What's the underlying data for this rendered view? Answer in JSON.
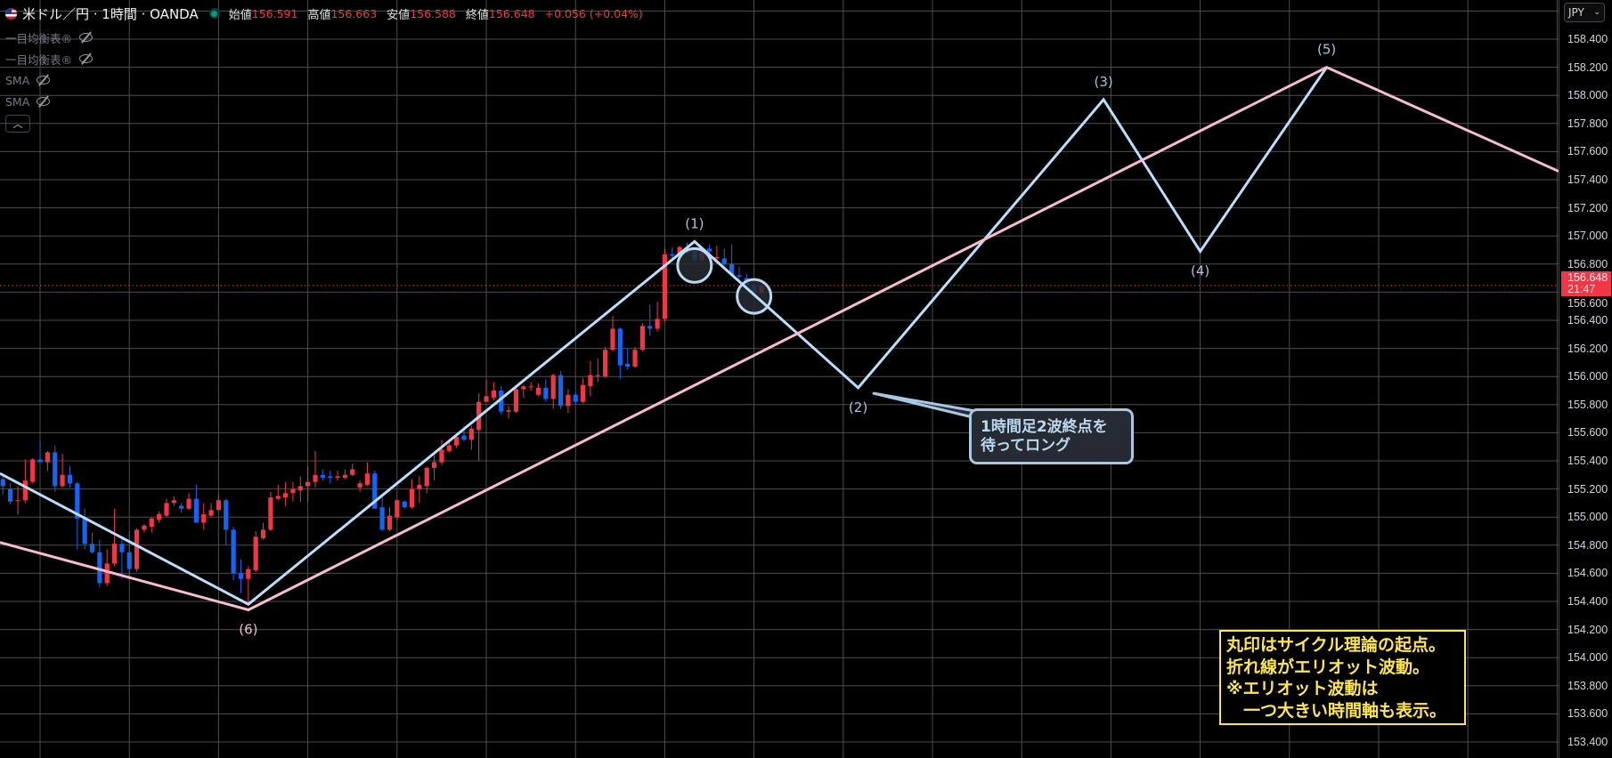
{
  "header": {
    "symbol_title": "米ドル／円 · 1時間 · OANDA",
    "open_label": "始値",
    "open_value": "156.591",
    "high_label": "高値",
    "high_value": "156.663",
    "low_label": "安値",
    "low_value": "156.588",
    "close_label": "終値",
    "close_value": "156.648",
    "change": "+0.056 (+0.04%)"
  },
  "indicators": [
    {
      "label": "一目均衡表®",
      "icon": "eye-off-icon"
    },
    {
      "label": "一目均衡表®",
      "icon": "eye-off-icon"
    },
    {
      "label": "SMA",
      "icon": "eye-off-icon"
    },
    {
      "label": "SMA",
      "icon": "eye-off-icon"
    }
  ],
  "collapse_icon": "chevron-up-icon",
  "price_axis": {
    "currency": "JPY",
    "ticks": [
      "158.400",
      "158.200",
      "158.000",
      "157.800",
      "157.600",
      "157.400",
      "157.200",
      "157.000",
      "156.800",
      "156.600",
      "156.400",
      "156.200",
      "156.000",
      "155.800",
      "155.600",
      "155.400",
      "155.200",
      "155.000",
      "154.800",
      "154.600",
      "154.400",
      "154.200",
      "154.000",
      "153.800",
      "153.600",
      "153.400"
    ],
    "current_price": "156.648",
    "countdown": "21:47"
  },
  "colors": {
    "up": "#f23645",
    "down": "#1465f5",
    "wave_small": "#bbdefb",
    "wave_large": "#f8bbd0",
    "note": "#fde64b",
    "grid": "#4d4d4d"
  },
  "chart_data": {
    "type": "candlestick",
    "ylim": [
      153.3,
      158.65
    ],
    "grid": true,
    "candles_ohlc": [
      [
        155.27,
        155.31,
        155.16,
        155.22
      ],
      [
        155.2,
        155.24,
        155.09,
        155.11
      ],
      [
        155.12,
        155.22,
        155.02,
        155.12
      ],
      [
        155.12,
        155.41,
        155.1,
        155.26
      ],
      [
        155.25,
        155.42,
        155.24,
        155.41
      ],
      [
        155.41,
        155.54,
        155.38,
        155.39
      ],
      [
        155.39,
        155.47,
        155.33,
        155.46
      ],
      [
        155.46,
        155.51,
        155.18,
        155.22
      ],
      [
        155.22,
        155.45,
        155.21,
        155.3
      ],
      [
        155.3,
        155.36,
        155.21,
        155.24
      ],
      [
        155.24,
        155.25,
        154.77,
        154.99
      ],
      [
        154.99,
        155.06,
        154.77,
        154.81
      ],
      [
        154.81,
        154.89,
        154.74,
        154.75
      ],
      [
        154.75,
        154.84,
        154.5,
        154.53
      ],
      [
        154.53,
        154.77,
        154.51,
        154.67
      ],
      [
        154.67,
        155.06,
        154.65,
        154.81
      ],
      [
        154.81,
        154.86,
        154.56,
        154.75
      ],
      [
        154.75,
        154.9,
        154.56,
        154.63
      ],
      [
        154.63,
        154.92,
        154.61,
        154.91
      ],
      [
        154.91,
        154.95,
        154.89,
        154.94
      ],
      [
        154.93,
        155.0,
        154.89,
        154.99
      ],
      [
        154.98,
        155.04,
        154.96,
        155.02
      ],
      [
        155.01,
        155.13,
        155.0,
        155.1
      ],
      [
        155.1,
        155.15,
        155.08,
        155.12
      ],
      [
        155.08,
        155.1,
        155.03,
        155.06
      ],
      [
        155.06,
        155.17,
        155.05,
        155.13
      ],
      [
        155.13,
        155.23,
        154.96,
        154.96
      ],
      [
        154.96,
        155.1,
        154.91,
        155.02
      ],
      [
        155.01,
        155.1,
        155.0,
        155.05
      ],
      [
        155.05,
        155.16,
        155.05,
        155.12
      ],
      [
        155.12,
        155.13,
        154.8,
        154.91
      ],
      [
        154.91,
        154.93,
        154.55,
        154.6
      ],
      [
        154.6,
        154.7,
        154.46,
        154.56
      ],
      [
        154.56,
        154.65,
        154.37,
        154.63
      ],
      [
        154.62,
        154.9,
        154.61,
        154.86
      ],
      [
        154.85,
        154.96,
        154.84,
        154.91
      ],
      [
        154.91,
        155.18,
        154.9,
        155.14
      ],
      [
        155.13,
        155.23,
        155.12,
        155.15
      ],
      [
        155.14,
        155.25,
        155.08,
        155.17
      ],
      [
        155.17,
        155.25,
        155.11,
        155.2
      ],
      [
        155.19,
        155.29,
        155.11,
        155.22
      ],
      [
        155.22,
        155.36,
        155.11,
        155.25
      ],
      [
        155.25,
        155.47,
        155.21,
        155.3
      ],
      [
        155.3,
        155.34,
        155.26,
        155.28
      ],
      [
        155.29,
        155.33,
        155.24,
        155.28
      ],
      [
        155.28,
        155.33,
        155.26,
        155.29
      ],
      [
        155.28,
        155.34,
        155.27,
        155.3
      ],
      [
        155.3,
        155.38,
        155.29,
        155.34
      ],
      [
        155.21,
        155.26,
        155.18,
        155.24
      ],
      [
        155.23,
        155.39,
        155.22,
        155.31
      ],
      [
        155.31,
        155.33,
        155.06,
        155.06
      ],
      [
        155.07,
        155.15,
        154.9,
        154.91
      ],
      [
        154.91,
        155.07,
        154.9,
        155.01
      ],
      [
        155.0,
        155.13,
        154.98,
        155.12
      ],
      [
        155.11,
        155.12,
        155.06,
        155.07
      ],
      [
        155.07,
        155.27,
        155.06,
        155.2
      ],
      [
        155.2,
        155.29,
        155.1,
        155.23
      ],
      [
        155.22,
        155.36,
        155.17,
        155.35
      ],
      [
        155.35,
        155.44,
        155.26,
        155.39
      ],
      [
        155.39,
        155.55,
        155.37,
        155.48
      ],
      [
        155.47,
        155.53,
        155.46,
        155.51
      ],
      [
        155.51,
        155.59,
        155.49,
        155.57
      ],
      [
        155.58,
        155.65,
        155.54,
        155.55
      ],
      [
        155.55,
        155.65,
        155.48,
        155.63
      ],
      [
        155.62,
        155.88,
        155.4,
        155.82
      ],
      [
        155.82,
        155.98,
        155.82,
        155.86
      ],
      [
        155.85,
        155.96,
        155.83,
        155.9
      ],
      [
        155.9,
        155.93,
        155.73,
        155.75
      ],
      [
        155.75,
        155.79,
        155.7,
        155.76
      ],
      [
        155.75,
        155.93,
        155.74,
        155.91
      ],
      [
        155.91,
        155.94,
        155.85,
        155.93
      ],
      [
        155.93,
        155.96,
        155.9,
        155.93
      ],
      [
        155.87,
        155.95,
        155.86,
        155.92
      ],
      [
        155.92,
        155.98,
        155.82,
        155.84
      ],
      [
        155.84,
        156.02,
        155.77,
        156.01
      ],
      [
        156.01,
        156.04,
        155.77,
        155.79
      ],
      [
        155.79,
        155.91,
        155.74,
        155.87
      ],
      [
        155.87,
        155.89,
        155.8,
        155.82
      ],
      [
        155.82,
        155.99,
        155.81,
        155.94
      ],
      [
        155.93,
        156.11,
        155.86,
        156.01
      ],
      [
        156.01,
        156.13,
        155.96,
        156.01
      ],
      [
        156.0,
        156.21,
        155.99,
        156.19
      ],
      [
        156.19,
        156.43,
        156.18,
        156.34
      ],
      [
        156.34,
        156.35,
        155.98,
        156.08
      ],
      [
        156.09,
        156.2,
        156.05,
        156.07
      ],
      [
        156.07,
        156.21,
        156.06,
        156.19
      ],
      [
        156.19,
        156.38,
        156.18,
        156.36
      ],
      [
        156.36,
        156.51,
        156.29,
        156.34
      ],
      [
        156.34,
        156.53,
        156.32,
        156.41
      ],
      [
        156.41,
        156.91,
        156.39,
        156.87
      ],
      [
        156.87,
        156.92,
        156.84,
        156.86
      ],
      [
        156.86,
        156.93,
        156.85,
        156.92
      ],
      [
        156.88,
        156.95,
        156.87,
        156.9
      ],
      [
        156.91,
        156.92,
        156.81,
        156.83
      ],
      [
        156.83,
        156.9,
        156.82,
        156.89
      ],
      [
        156.91,
        156.94,
        156.87,
        156.89
      ],
      [
        156.84,
        156.93,
        156.83,
        156.85
      ],
      [
        156.84,
        156.91,
        156.79,
        156.8
      ],
      [
        156.8,
        156.94,
        156.72,
        156.72
      ],
      [
        156.72,
        156.78,
        156.69,
        156.71
      ],
      [
        156.7,
        156.73,
        156.64,
        156.65
      ],
      [
        156.65,
        156.67,
        156.58,
        156.59
      ],
      [
        156.591,
        156.663,
        156.588,
        156.648
      ]
    ],
    "waves": [
      {
        "name": "small",
        "color": "#bbdefb",
        "points": [
          {
            "bar": -0.4,
            "price": 155.31
          },
          {
            "bar": 33,
            "price": 154.38,
            "label": ""
          },
          {
            "bar": 93,
            "price": 156.96,
            "label": "(1)",
            "pos": "above"
          },
          {
            "bar": 115,
            "price": 155.92,
            "label": "(2)",
            "pos": "below"
          },
          {
            "bar": 148,
            "price": 157.97,
            "label": "(3)",
            "pos": "above"
          },
          {
            "bar": 161,
            "price": 156.89,
            "label": "(4)",
            "pos": "below"
          },
          {
            "bar": 178,
            "price": 158.2,
            "label": "(5)",
            "pos": "above"
          }
        ]
      },
      {
        "name": "large",
        "color": "#f8bbd0",
        "points": [
          {
            "bar": -0.4,
            "price": 154.82
          },
          {
            "bar": 33,
            "price": 154.34,
            "label": "(6)",
            "pos": "below"
          },
          {
            "bar": 178,
            "price": 158.2,
            "label": "",
            "pos": "above"
          },
          {
            "bar": 209.2,
            "price": 157.46
          }
        ]
      }
    ],
    "cycle_circles": [
      {
        "bar": 93,
        "price": 156.79
      },
      {
        "bar": 101,
        "price": 156.57
      }
    ],
    "current_price": 156.648
  },
  "callout": {
    "anchor_bar": 117.1,
    "anchor_price": 155.88,
    "line1": "1時間足2波終点を",
    "line2": "待ってロング"
  },
  "note": {
    "lines": [
      "丸印はサイクル理論の起点。",
      "折れ線がエリオット波動。",
      "※エリオット波動は",
      "　一つ大きい時間軸も表示。"
    ]
  }
}
